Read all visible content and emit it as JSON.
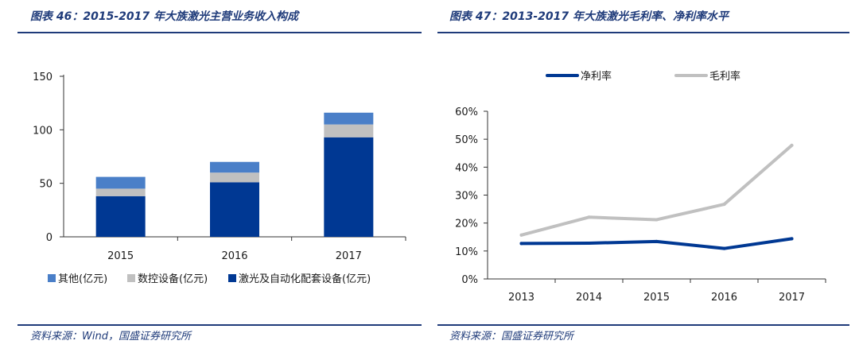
{
  "left": {
    "title": "图表 46：2015-2017 年大族激光主营业务收入构成",
    "source": "资料来源：Wind，国盛证券研究所"
  },
  "right": {
    "title": "图表 47：2013-2017 年大族激光毛利率、净利率水平",
    "source": "资料来源：国盛证券研究所"
  },
  "colors": {
    "navy": "#1f3b7a",
    "laser": "#003893",
    "cnc": "#c0c0c0",
    "other": "#4a7fc8",
    "net": "#003893",
    "gross": "#c0c0c0"
  },
  "chart_data": [
    {
      "type": "bar",
      "stacked": true,
      "categories": [
        "2015",
        "2016",
        "2017"
      ],
      "series": [
        {
          "name": "激光及自动化配套设备(亿元)",
          "values": [
            38,
            51,
            93
          ],
          "color": "#003893"
        },
        {
          "name": "数控设备(亿元)",
          "values": [
            7,
            9,
            12
          ],
          "color": "#c0c0c0"
        },
        {
          "name": "其他(亿元)",
          "values": [
            11,
            10,
            11
          ],
          "color": "#4a7fc8"
        }
      ],
      "legend_order": [
        "其他(亿元)",
        "数控设备(亿元)",
        "激光及自动化配套设备(亿元)"
      ],
      "ylim": [
        0,
        150
      ],
      "yticks": [
        0,
        50,
        100,
        150
      ],
      "legend_position": "bottom",
      "grid": false
    },
    {
      "type": "line",
      "x": [
        "2013",
        "2014",
        "2015",
        "2016",
        "2017"
      ],
      "series": [
        {
          "name": "净利率",
          "values": [
            12.7,
            12.8,
            13.4,
            10.9,
            14.4
          ],
          "color": "#003893"
        },
        {
          "name": "毛利率",
          "values": [
            15.7,
            22.1,
            21.2,
            26.7,
            47.8
          ],
          "color": "#c0c0c0"
        }
      ],
      "ylim": [
        0,
        60
      ],
      "yticks": [
        "0%",
        "10%",
        "20%",
        "30%",
        "40%",
        "50%",
        "60%"
      ],
      "legend_position": "top",
      "grid": false
    }
  ]
}
